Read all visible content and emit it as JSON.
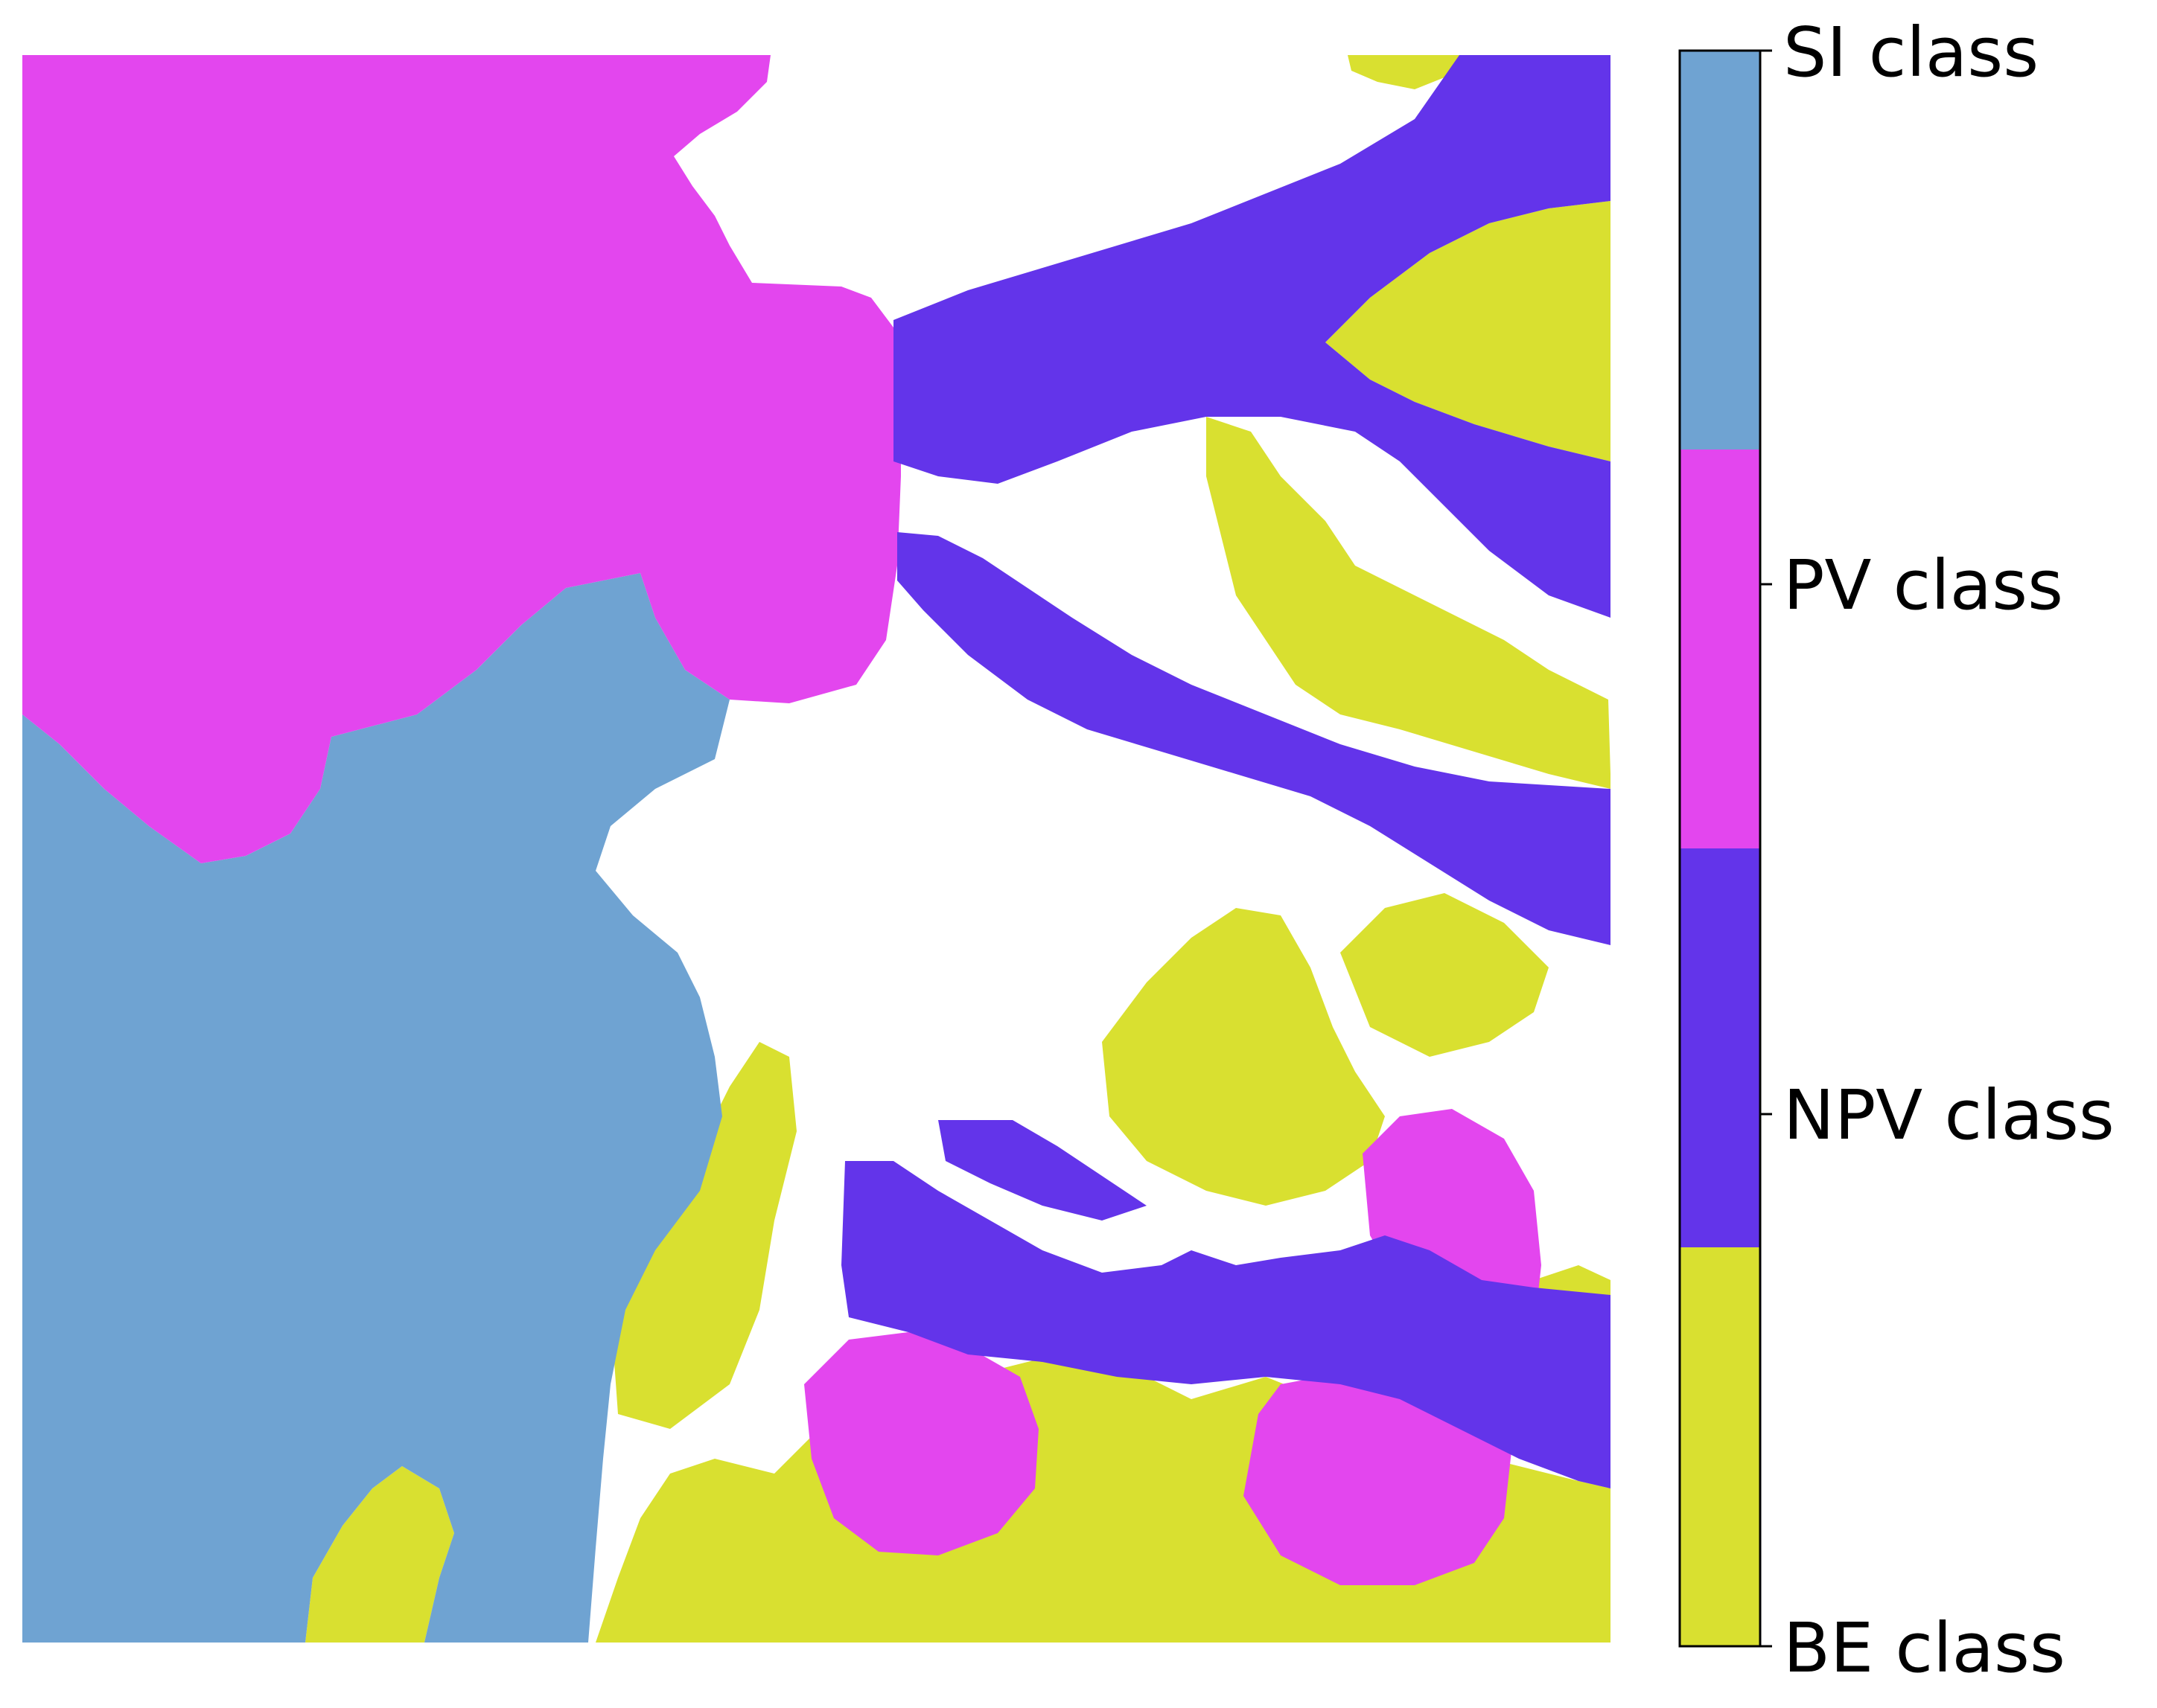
{
  "legend": {
    "classes": [
      {
        "key": "si",
        "label": "SI class",
        "color": "#6fa3d2"
      },
      {
        "key": "pv",
        "label": "PV class",
        "color": "#e346ee"
      },
      {
        "key": "npv",
        "label": "NPV class",
        "color": "#6334ea"
      },
      {
        "key": "be",
        "label": "BE class",
        "color": "#d9e030"
      }
    ]
  },
  "colors": {
    "background": "#ffffff"
  }
}
